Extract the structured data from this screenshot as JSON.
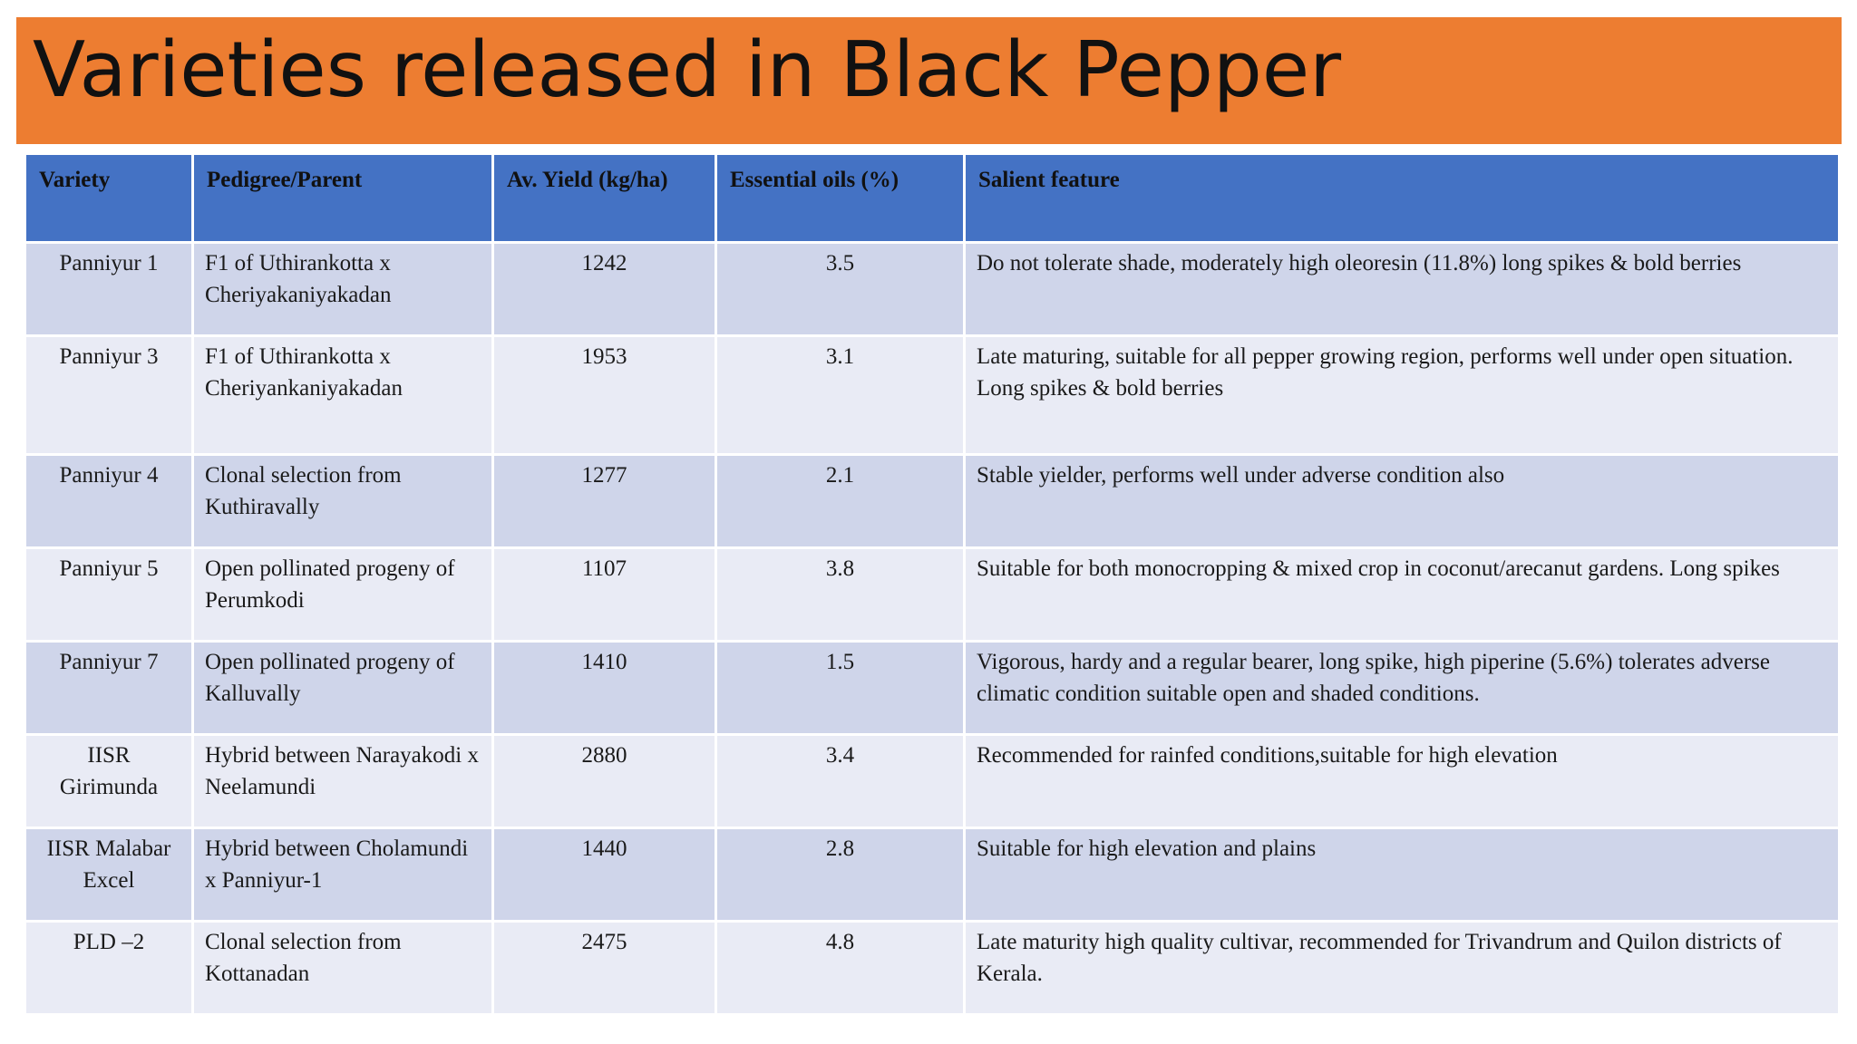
{
  "title": "Varieties released in Black Pepper",
  "colors": {
    "title_bar": "#ED7D31",
    "header_row": "#4472C4",
    "row_band_dark": "#CFD5EA",
    "row_band_light": "#E9EBF5"
  },
  "table": {
    "headers": {
      "variety": "Variety",
      "pedigree": "Pedigree/Parent",
      "yield": "Av. Yield (kg/ha)",
      "oil": "Essential oils (%)",
      "feature": "Salient feature"
    },
    "rows": [
      {
        "variety": "Panniyur 1",
        "pedigree": "F1 of Uthirankotta x Cheriyakaniyakadan",
        "yield": "1242",
        "oil": "3.5",
        "feature": "Do not tolerate shade, moderately high oleoresin (11.8%) long spikes & bold berries"
      },
      {
        "variety": "Panniyur 3",
        "pedigree": "F1 of Uthirankotta x Cheriyankaniyakadan",
        "yield": "1953",
        "oil": "3.1",
        "feature": "Late maturing, suitable for all pepper growing region, performs well under open situation. Long spikes & bold berries"
      },
      {
        "variety": "Panniyur 4",
        "pedigree": "Clonal selection from Kuthiravally",
        "yield": "1277",
        "oil": "2.1",
        "feature": "Stable yielder, performs well under adverse condition also"
      },
      {
        "variety": "Panniyur 5",
        "pedigree": "Open pollinated progeny of Perumkodi",
        "yield": "1107",
        "oil": "3.8",
        "feature": "Suitable for both monocropping & mixed crop in coconut/arecanut gardens. Long spikes"
      },
      {
        "variety": "Panniyur 7",
        "pedigree": "Open pollinated progeny of Kalluvally",
        "yield": "1410",
        "oil": "1.5",
        "feature": "Vigorous, hardy and a regular bearer, long spike, high piperine (5.6%) tolerates adverse climatic condition suitable open and shaded conditions."
      },
      {
        "variety": "IISR Girimunda",
        "pedigree": "Hybrid between Narayakodi x Neelamundi",
        "yield": "2880",
        "oil": "3.4",
        "feature": "Recommended for rainfed conditions,suitable for high elevation"
      },
      {
        "variety": "IISR Malabar Excel",
        "pedigree": "Hybrid between Cholamundi x Panniyur-1",
        "yield": "1440",
        "oil": "2.8",
        "feature": "Suitable for high elevation and plains"
      },
      {
        "variety": "PLD –2",
        "pedigree": "Clonal selection from Kottanadan",
        "yield": "2475",
        "oil": "4.8",
        "feature": "Late maturity high quality cultivar, recommended for Trivandrum and Quilon districts of Kerala."
      }
    ]
  }
}
